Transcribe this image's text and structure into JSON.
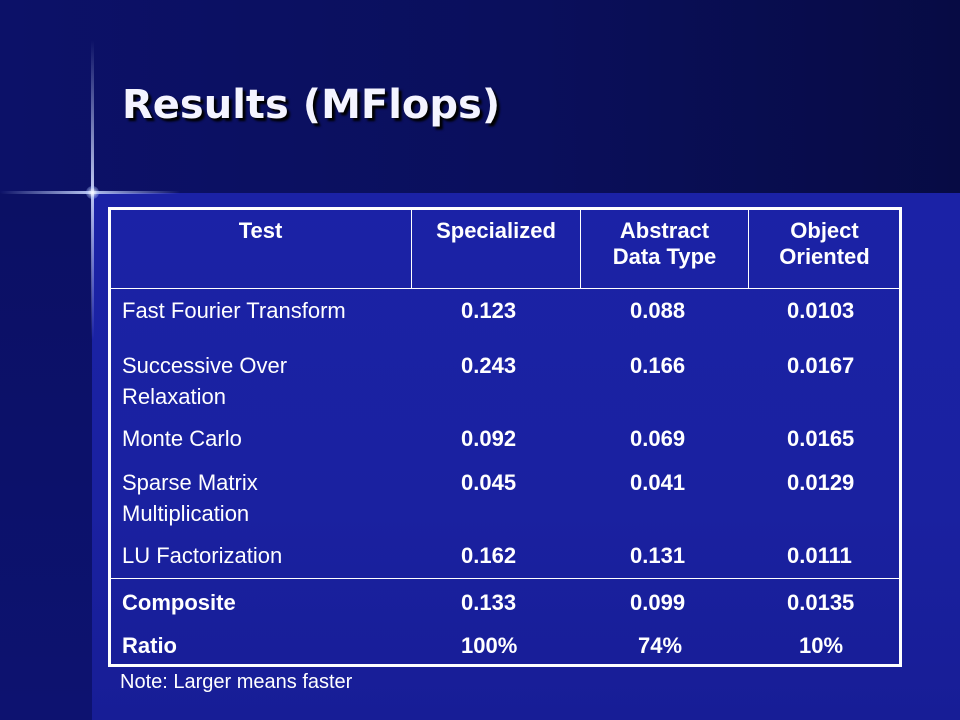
{
  "slide": {
    "title": "Results (MFlops)",
    "note": "Note: Larger means faster"
  },
  "table": {
    "headers": [
      "Test",
      "Specialized",
      "Abstract Data Type",
      "Object Oriented"
    ],
    "header_lines": {
      "adt": [
        "Abstract",
        "Data Type"
      ],
      "oo": [
        "Object",
        "Oriented"
      ]
    },
    "rows": [
      {
        "label_lines": [
          "Fast Fourier Transform"
        ],
        "specialized": "0.123",
        "adt": "0.088",
        "oo": "0.0103"
      },
      {
        "label_lines": [
          "Successive Over",
          "Relaxation"
        ],
        "specialized": "0.243",
        "adt": "0.166",
        "oo": "0.0167"
      },
      {
        "label_lines": [
          "Monte Carlo"
        ],
        "specialized": "0.092",
        "adt": "0.069",
        "oo": "0.0165"
      },
      {
        "label_lines": [
          "Sparse Matrix",
          "Multiplication"
        ],
        "specialized": "0.045",
        "adt": "0.041",
        "oo": "0.0129"
      },
      {
        "label_lines": [
          "LU Factorization"
        ],
        "specialized": "0.162",
        "adt": "0.131",
        "oo": "0.0111"
      }
    ],
    "summary": [
      {
        "label": "Composite",
        "specialized": "0.133",
        "adt": "0.099",
        "oo": "0.0135"
      },
      {
        "label": "Ratio",
        "specialized": "100%",
        "adt": "74%",
        "oo": "10%"
      }
    ]
  }
}
